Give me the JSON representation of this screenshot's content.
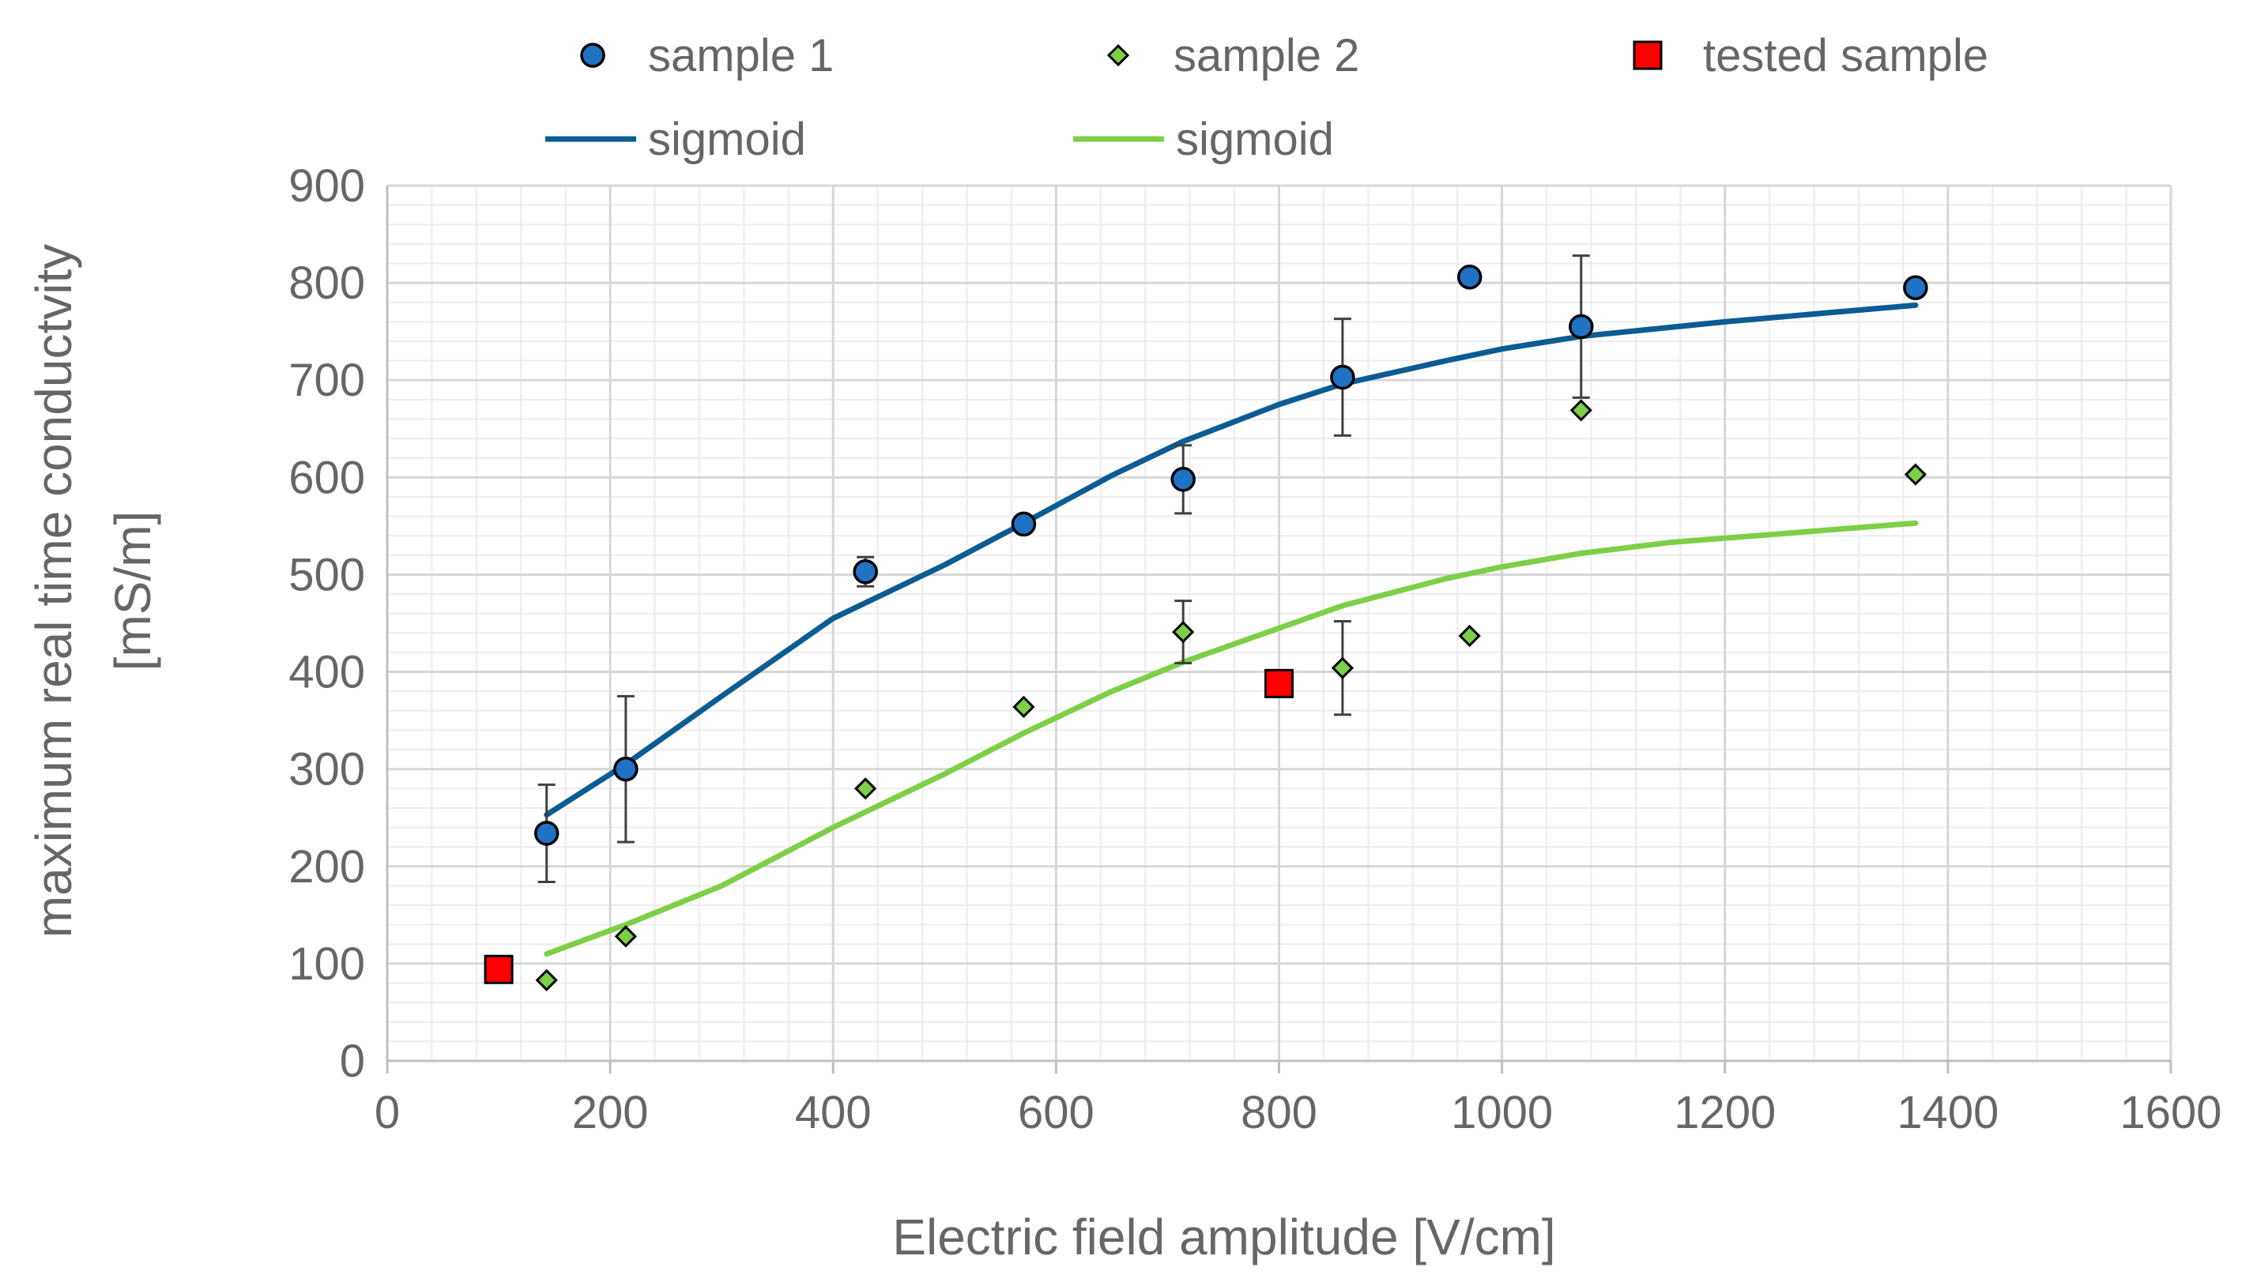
{
  "chart_data": {
    "type": "scatter",
    "title": "",
    "xlabel": "Electric field amplitude  [V/cm]",
    "ylabel_lines": [
      "maximum real time conductvity",
      "[mS/m]"
    ],
    "xlim": [
      0,
      1600
    ],
    "ylim": [
      0,
      900
    ],
    "x_major_step": 200,
    "x_minor_step": 40,
    "y_major_step": 100,
    "y_minor_step": 20,
    "x_ticks": [
      "0",
      "200",
      "400",
      "600",
      "800",
      "1000",
      "1200",
      "1400",
      "1600"
    ],
    "y_ticks": [
      "0",
      "100",
      "200",
      "300",
      "400",
      "500",
      "600",
      "700",
      "800",
      "900"
    ],
    "grid": true,
    "legend_position": "top",
    "series": [
      {
        "name": "sample 1",
        "kind": "points",
        "marker": "circle",
        "color": "#1F72C4",
        "points": [
          {
            "x": 143,
            "y": 234,
            "err": 50
          },
          {
            "x": 214,
            "y": 300,
            "err": 75
          },
          {
            "x": 429,
            "y": 503,
            "err": 15
          },
          {
            "x": 571,
            "y": 552,
            "err": 0
          },
          {
            "x": 714,
            "y": 598,
            "err": 35
          },
          {
            "x": 857,
            "y": 703,
            "err": 60
          },
          {
            "x": 971,
            "y": 806,
            "err": 0
          },
          {
            "x": 1071,
            "y": 755,
            "err": 73
          },
          {
            "x": 1371,
            "y": 795,
            "err": 0
          }
        ]
      },
      {
        "name": "sample 2",
        "kind": "points",
        "marker": "diamond",
        "color": "#7CCF47",
        "points": [
          {
            "x": 143,
            "y": 83,
            "err": 0
          },
          {
            "x": 214,
            "y": 128,
            "err": 0
          },
          {
            "x": 429,
            "y": 280,
            "err": 0
          },
          {
            "x": 571,
            "y": 364,
            "err": 0
          },
          {
            "x": 714,
            "y": 441,
            "err": 32
          },
          {
            "x": 857,
            "y": 404,
            "err": 48
          },
          {
            "x": 971,
            "y": 437,
            "err": 0
          },
          {
            "x": 1071,
            "y": 669,
            "err": 0
          },
          {
            "x": 1371,
            "y": 603,
            "err": 0
          }
        ]
      },
      {
        "name": "tested sample",
        "kind": "points",
        "marker": "square",
        "color": "#FF0000",
        "points": [
          {
            "x": 100,
            "y": 94,
            "err": 0
          },
          {
            "x": 800,
            "y": 388,
            "err": 0
          }
        ]
      },
      {
        "name": "sigmoid",
        "kind": "line",
        "color": "#0B5C93",
        "points": [
          {
            "x": 143,
            "y": 253
          },
          {
            "x": 214,
            "y": 305
          },
          {
            "x": 300,
            "y": 375
          },
          {
            "x": 400,
            "y": 455
          },
          {
            "x": 500,
            "y": 510
          },
          {
            "x": 571,
            "y": 553
          },
          {
            "x": 650,
            "y": 602
          },
          {
            "x": 714,
            "y": 637
          },
          {
            "x": 800,
            "y": 675
          },
          {
            "x": 857,
            "y": 696
          },
          {
            "x": 950,
            "y": 720
          },
          {
            "x": 1000,
            "y": 732
          },
          {
            "x": 1071,
            "y": 745
          },
          {
            "x": 1200,
            "y": 760
          },
          {
            "x": 1300,
            "y": 770
          },
          {
            "x": 1371,
            "y": 777
          }
        ]
      },
      {
        "name": "sigmoid",
        "kind": "line",
        "color": "#7CCF47",
        "points": [
          {
            "x": 143,
            "y": 110
          },
          {
            "x": 214,
            "y": 140
          },
          {
            "x": 300,
            "y": 180
          },
          {
            "x": 400,
            "y": 240
          },
          {
            "x": 500,
            "y": 295
          },
          {
            "x": 571,
            "y": 337
          },
          {
            "x": 650,
            "y": 380
          },
          {
            "x": 714,
            "y": 410
          },
          {
            "x": 800,
            "y": 445
          },
          {
            "x": 857,
            "y": 468
          },
          {
            "x": 950,
            "y": 496
          },
          {
            "x": 1000,
            "y": 508
          },
          {
            "x": 1071,
            "y": 522
          },
          {
            "x": 1150,
            "y": 533
          },
          {
            "x": 1250,
            "y": 542
          },
          {
            "x": 1371,
            "y": 553
          }
        ]
      }
    ]
  }
}
